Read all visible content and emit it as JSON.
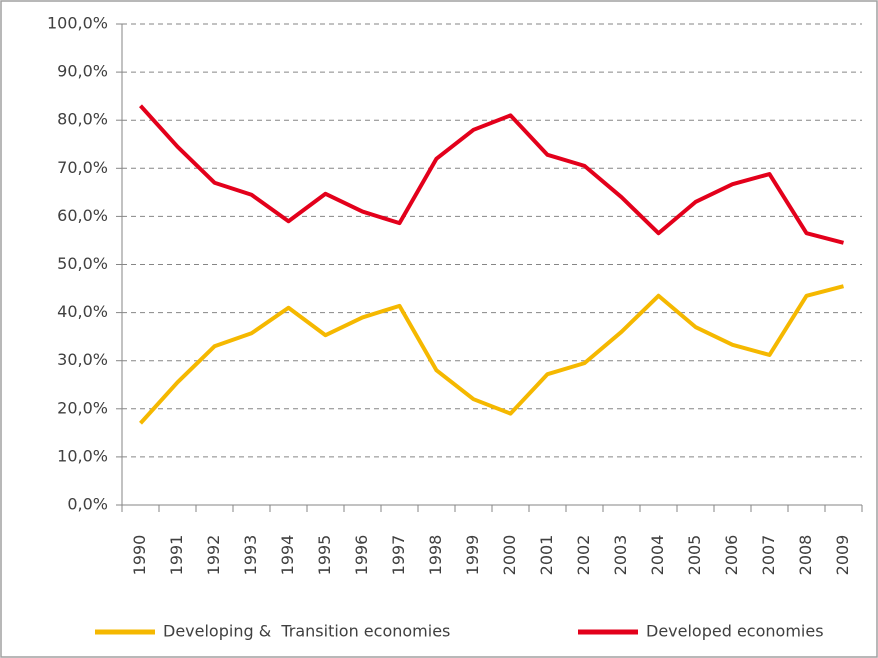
{
  "chart_data": {
    "type": "line",
    "categories": [
      "1990",
      "1991",
      "1992",
      "1993",
      "1994",
      "1995",
      "1996",
      "1997",
      "1998",
      "1999",
      "2000",
      "2001",
      "2002",
      "2003",
      "2004",
      "2005",
      "2006",
      "2007",
      "2008",
      "2009"
    ],
    "series": [
      {
        "name": "Developing &  Transition economies",
        "color": "#f5b800",
        "values": [
          17,
          25.5,
          33,
          35.7,
          41,
          35.3,
          39,
          41.4,
          28,
          22,
          19,
          27.2,
          29.5,
          36,
          43.5,
          37,
          33.3,
          31.2,
          43.5,
          45.5
        ]
      },
      {
        "name": "Developed economies",
        "color": "#e3001b",
        "values": [
          83,
          74.5,
          67,
          64.5,
          59,
          64.7,
          61,
          58.6,
          72,
          78,
          81,
          72.8,
          70.5,
          64,
          56.5,
          63,
          66.7,
          68.8,
          56.5,
          54.5
        ]
      }
    ],
    "ylim": [
      0,
      100
    ],
    "yticks": [
      {
        "value": 0,
        "label": "0,0%"
      },
      {
        "value": 10,
        "label": "10,0%"
      },
      {
        "value": 20,
        "label": "20,0%"
      },
      {
        "value": 30,
        "label": "30,0%"
      },
      {
        "value": 40,
        "label": "40,0%"
      },
      {
        "value": 50,
        "label": "50,0%"
      },
      {
        "value": 60,
        "label": "60,0%"
      },
      {
        "value": 70,
        "label": "70,0%"
      },
      {
        "value": 80,
        "label": "80,0%"
      },
      {
        "value": 90,
        "label": "90,0%"
      },
      {
        "value": 100,
        "label": "100,0%"
      }
    ],
    "grid": true,
    "legend": "bottom"
  }
}
